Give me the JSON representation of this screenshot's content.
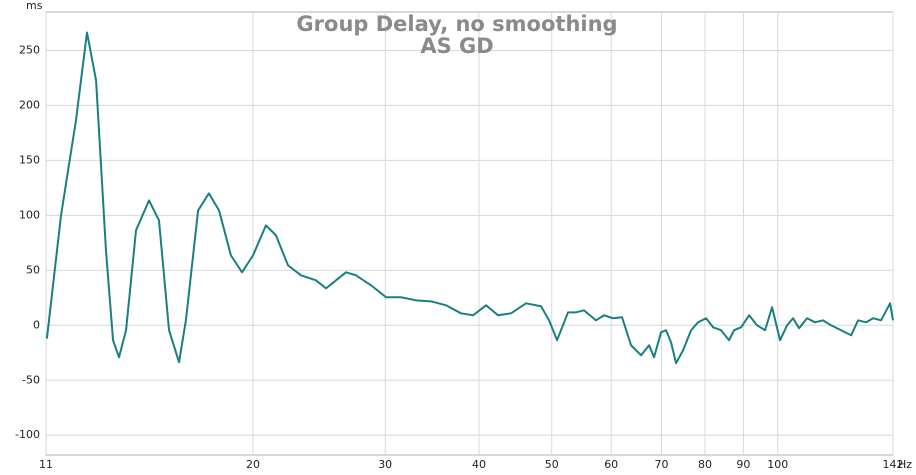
{
  "chart_data": {
    "type": "line",
    "title": "Group Delay, no smoothing",
    "subtitle": "AS GD",
    "y_label": "ms",
    "x_label": "Hz",
    "log_x": true,
    "grid": true,
    "xlim": [
      10.6,
      142.4
    ],
    "ylim": [
      -118,
      285
    ],
    "xticks": [
      {
        "value": 10.6,
        "label": "11"
      },
      20,
      30,
      40,
      50,
      60,
      70,
      80,
      90,
      100,
      {
        "value": 142.4,
        "label": "142"
      }
    ],
    "yticks": [
      -100,
      -50,
      0,
      50,
      100,
      150,
      200,
      250
    ],
    "x": [
      10.63,
      11.1,
      11.62,
      12.02,
      12.36,
      12.74,
      13.02,
      13.26,
      13.55,
      13.97,
      14.54,
      14.99,
      15.46,
      15.94,
      16.28,
      16.9,
      17.47,
      18.02,
      18.69,
      19.34,
      20,
      20.81,
      21.46,
      22.27,
      23.17,
      24.26,
      25.02,
      25.8,
      26.6,
      27.43,
      28.72,
      30.08,
      31.49,
      32.97,
      34.53,
      36.15,
      37.85,
      39.28,
      40.87,
      42.41,
      44.13,
      46.21,
      48.38,
      49.59,
      50.82,
      52.56,
      53.87,
      55.2,
      57.27,
      58.7,
      60.34,
      62.03,
      63.77,
      65.76,
      67.39,
      68.43,
      69.91,
      71.0,
      72.09,
      73.21,
      74.8,
      76.66,
      78.32,
      80.27,
      82.0,
      84.04,
      86.13,
      87.46,
      89.36,
      91.58,
      93.85,
      96.19,
      98.27,
      100.72,
      102.9,
      104.81,
      106.76,
      109.41,
      112.13,
      114.92,
      117.77,
      121.44,
      125.23,
      127.94,
      131.12,
      133.96,
      137.29,
      141.14,
      142.4
    ],
    "series": [
      {
        "name": "AS GD",
        "color": "#1a7f80",
        "values": [
          -12,
          100,
          186.4,
          266.4,
          222.7,
          68.2,
          -13.6,
          -29.1,
          -4.5,
          86.4,
          113.6,
          95.5,
          -4.5,
          -33.6,
          4.5,
          104.5,
          120,
          104.5,
          63.6,
          48.2,
          63.6,
          90.9,
          81.8,
          54.5,
          45.5,
          40.9,
          33.6,
          40.9,
          48.2,
          45.5,
          36.4,
          25.5,
          25.5,
          22.7,
          21.8,
          18.2,
          10.9,
          9.1,
          18.2,
          9.1,
          10.9,
          20,
          17.3,
          4.5,
          -13.6,
          11.8,
          11.8,
          13.6,
          4.5,
          9.1,
          6.4,
          7.3,
          -18.2,
          -27.3,
          -18.2,
          -29.1,
          -6.4,
          -4.5,
          -15.5,
          -34.5,
          -22.7,
          -4.5,
          2.7,
          6.4,
          -1.8,
          -4.5,
          -13.6,
          -4.5,
          -1.8,
          9.1,
          0,
          -4.5,
          16.4,
          -13.6,
          0,
          6.4,
          -2.7,
          6.4,
          2.7,
          4.5,
          0,
          -4.5,
          -9.1,
          4.5,
          2.7,
          6.4,
          4.5,
          20,
          4.5
        ]
      }
    ]
  }
}
